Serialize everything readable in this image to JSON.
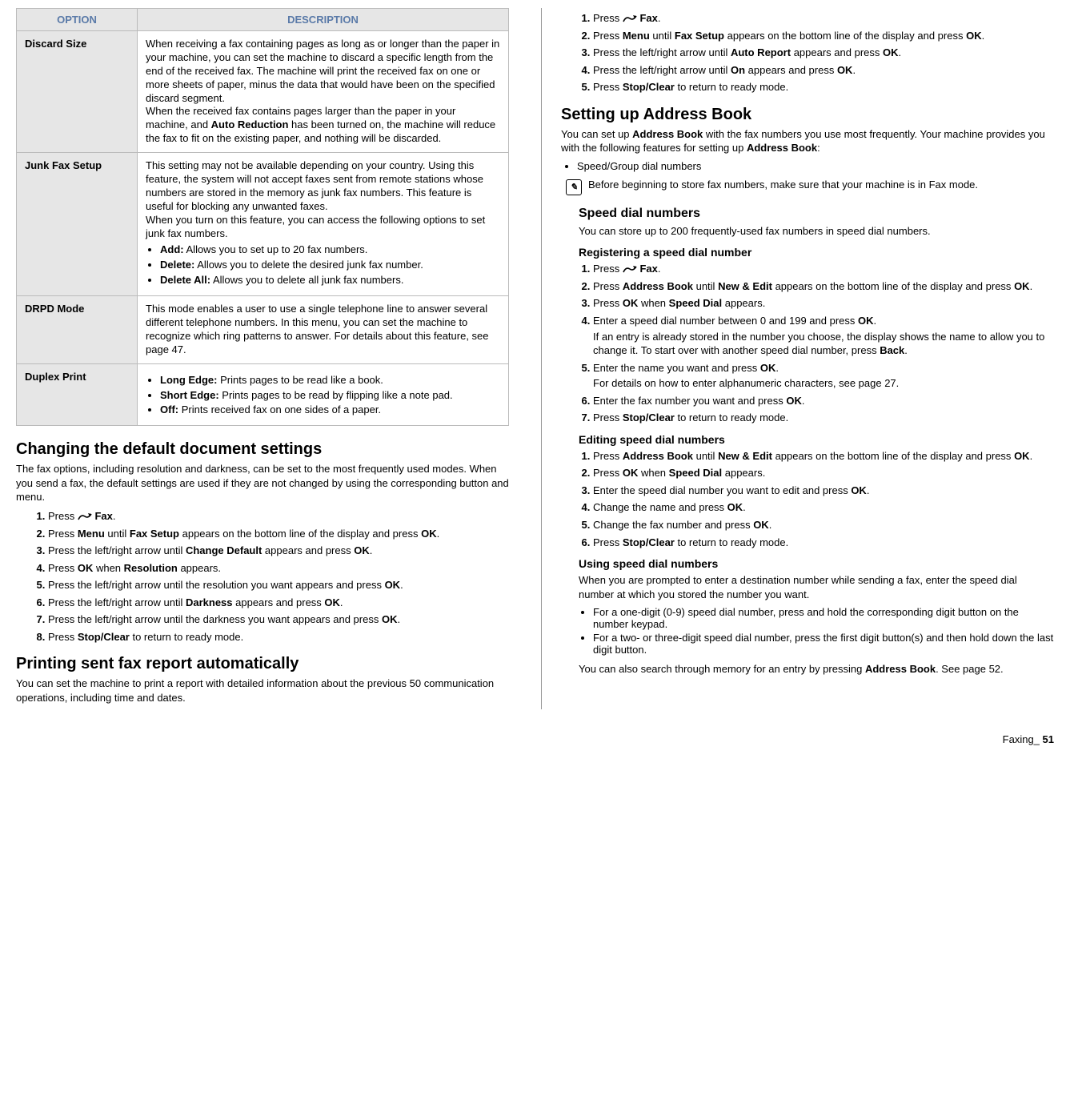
{
  "table": {
    "headers": [
      "OPTION",
      "DESCRIPTION"
    ],
    "rows": [
      {
        "option": "Discard Size",
        "desc1": "When receiving a fax containing pages as long as or longer than the paper in your machine, you can set the machine to discard a specific length from the end of the received fax. The machine will print the received fax on one or more sheets of paper, minus the data that would have been on the specified discard segment.",
        "desc2a": "When the received fax contains pages larger than the paper in your machine, and ",
        "desc2b": "Auto Reduction",
        "desc2c": " has been turned on, the machine will reduce the fax to fit on the existing paper, and nothing will be discarded."
      },
      {
        "option": "Junk Fax Setup",
        "desc1": "This setting may not be available depending on your country. Using this feature, the system will not accept faxes sent from remote stations whose numbers are stored in the memory as junk fax numbers. This feature is useful for blocking any unwanted faxes.",
        "desc2": "When you turn on this feature, you can access the following options to set junk fax numbers.",
        "bullets": [
          {
            "b": "Add:",
            "t": "  Allows you to set up to 20 fax numbers."
          },
          {
            "b": "Delete:",
            "t": "  Allows you to delete the desired junk fax number."
          },
          {
            "b": "Delete All:",
            "t": "  Allows you to delete all junk fax numbers."
          }
        ]
      },
      {
        "option": "DRPD Mode",
        "desc": "This mode enables a user to use a single telephone line to answer several different telephone numbers. In this menu, you can set the machine to recognize which ring patterns to answer. For details about this feature, see page 47."
      },
      {
        "option": "Duplex Print",
        "bullets": [
          {
            "b": "Long Edge:",
            "t": "  Prints pages to be read like a book."
          },
          {
            "b": "Short Edge:",
            "t": "  Prints pages to be read by flipping like a note pad."
          },
          {
            "b": "Off:",
            "t": "  Prints received fax on one sides of a paper."
          }
        ]
      }
    ]
  },
  "left": {
    "h_change": "Changing the default document settings",
    "p_change": "The fax options, including resolution and darkness, can be set to the most frequently used modes. When you send a fax, the default settings are used if they are not changed by using the corresponding button and menu.",
    "steps_change": [
      {
        "pre": "Press ",
        "icon": true,
        "b": "Fax",
        "post": "."
      },
      {
        "pre": "Press ",
        "b": "Menu",
        "mid": " until ",
        "b2": "Fax Setup",
        "mid2": " appears on the bottom line of the display and press ",
        "b3": "OK",
        "post": "."
      },
      {
        "pre": "Press the left/right arrow until ",
        "b": "Change Default",
        "mid": " appears and press ",
        "b2": "OK",
        "post": "."
      },
      {
        "pre": "Press ",
        "b": "OK",
        "mid": " when ",
        "b2": "Resolution",
        "post": " appears."
      },
      {
        "pre": "Press the left/right arrow until the resolution you want appears and press ",
        "b": "OK",
        "post": "."
      },
      {
        "pre": "Press the left/right arrow until ",
        "b": "Darkness",
        "mid": " appears and press ",
        "b2": "OK",
        "post": "."
      },
      {
        "pre": "Press the left/right arrow until the darkness you want appears and press ",
        "b": "OK",
        "post": "."
      },
      {
        "pre": "Press ",
        "b": "Stop/Clear",
        "post": " to return to ready mode."
      }
    ],
    "h_print": "Printing sent fax report automatically",
    "p_print": "You can set the machine to print a report with detailed information about the previous 50 communication operations, including time and dates."
  },
  "right": {
    "steps_auto": [
      {
        "pre": "Press ",
        "icon": true,
        "b": "Fax",
        "post": "."
      },
      {
        "pre": "Press ",
        "b": "Menu",
        "mid": " until ",
        "b2": "Fax Setup",
        "mid2": " appears on the bottom line of the display and press ",
        "b3": "OK",
        "post": "."
      },
      {
        "pre": "Press the left/right arrow until ",
        "b": "Auto Report",
        "mid": " appears and press ",
        "b2": "OK",
        "post": "."
      },
      {
        "pre": "Press the left/right arrow until ",
        "b": "On",
        "mid": " appears and press ",
        "b2": "OK",
        "post": "."
      },
      {
        "pre": "Press ",
        "b": "Stop/Clear",
        "post": " to return to ready mode."
      }
    ],
    "h_addr": "Setting up Address Book",
    "p_addr1a": "You can set up ",
    "p_addr1b": "Address Book",
    "p_addr1c": " with the fax numbers you use most frequently. Your machine provides you with the following features for setting up ",
    "p_addr1d": "Address Book",
    "p_addr1e": ":",
    "ul_addr": "Speed/Group dial numbers",
    "note": "Before beginning to store fax numbers, make sure that your machine is in Fax mode.",
    "h_speed": "Speed dial numbers",
    "p_speed": "You can store up to 200 frequently-used fax numbers in speed dial numbers.",
    "h_reg": "Registering a speed dial number",
    "steps_reg": [
      {
        "pre": "Press ",
        "icon": true,
        "b": "Fax",
        "post": "."
      },
      {
        "pre": "Press ",
        "b": "Address Book",
        "mid": " until ",
        "b2": "New & Edit",
        "mid2": " appears on the bottom line of the display and press ",
        "b3": "OK",
        "post": "."
      },
      {
        "pre": "Press ",
        "b": "OK",
        "mid": " when ",
        "b2": "Speed Dial",
        "post": " appears."
      },
      {
        "pre": "Enter a speed dial number between 0 and 199 and press ",
        "b": "OK",
        "post": ".",
        "extra_a": "If an entry is already stored in the number you choose, the display shows the name to allow you to change it. To start over with another speed dial number, press ",
        "extra_b": "Back",
        "extra_c": "."
      },
      {
        "pre": "Enter the name you want and press ",
        "b": "OK",
        "post": ".",
        "extra_plain": "For details on how to enter alphanumeric characters, see page 27."
      },
      {
        "pre": "Enter the fax number you want and press ",
        "b": "OK",
        "post": "."
      },
      {
        "pre": "Press ",
        "b": "Stop/Clear",
        "post": " to return to ready mode."
      }
    ],
    "h_edit": "Editing speed dial numbers",
    "steps_edit": [
      {
        "pre": "Press ",
        "b": "Address Book",
        "mid": " until ",
        "b2": "New & Edit",
        "mid2": " appears on the bottom line of the display and press ",
        "b3": "OK",
        "post": "."
      },
      {
        "pre": "Press ",
        "b": "OK",
        "mid": " when ",
        "b2": "Speed Dial",
        "post": " appears."
      },
      {
        "pre": "Enter the speed dial number you want to edit and press ",
        "b": "OK",
        "post": "."
      },
      {
        "pre": "Change the name and press ",
        "b": "OK",
        "post": "."
      },
      {
        "pre": "Change the fax number and press ",
        "b": "OK",
        "post": "."
      },
      {
        "pre": "Press ",
        "b": "Stop/Clear",
        "post": " to return to ready mode."
      }
    ],
    "h_use": "Using speed dial numbers",
    "p_use": "When you are prompted to enter a destination number while sending a fax, enter the speed dial number at which you stored the number you want.",
    "ul_use": [
      "For a one-digit (0-9) speed dial number, press and hold the corresponding digit button on the number keypad.",
      "For a two- or three-digit speed dial number, press the first digit button(s) and then hold down the last digit button."
    ],
    "p_use2a": "You can also search through memory for an entry by pressing ",
    "p_use2b": "Address Book",
    "p_use2c": ". See page 52."
  },
  "footer": {
    "label": "Faxing_",
    "page": "51"
  }
}
